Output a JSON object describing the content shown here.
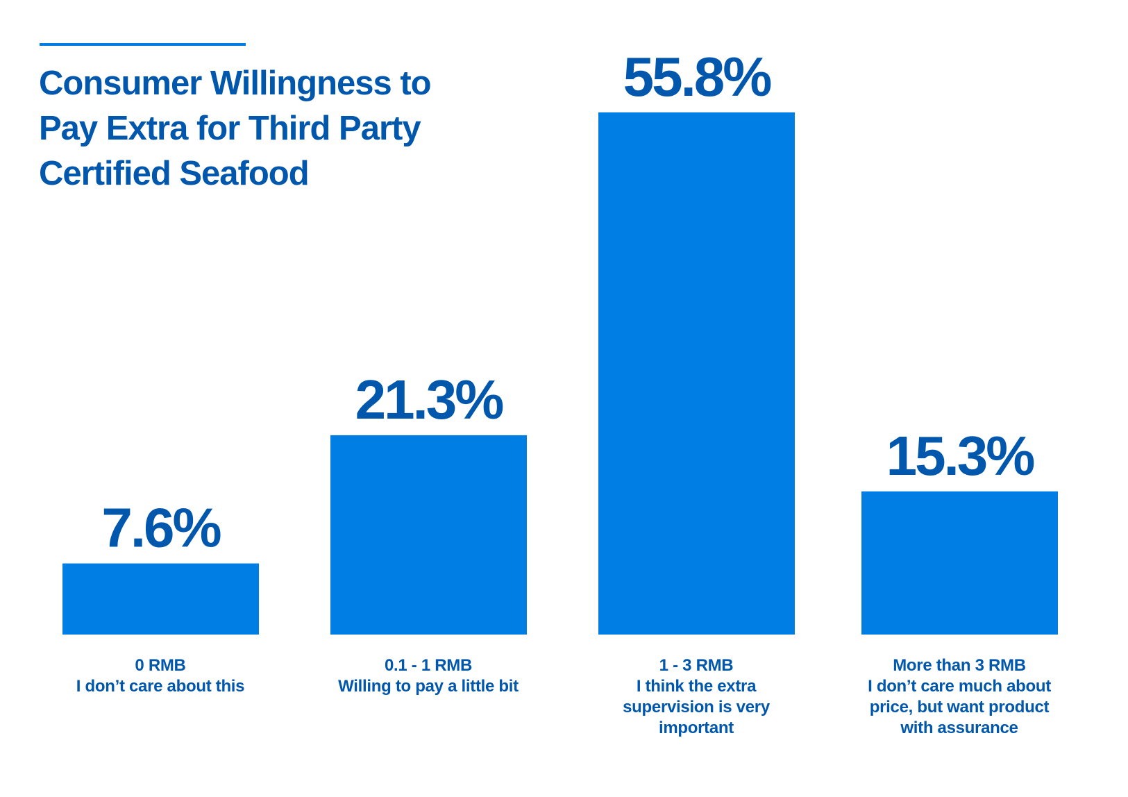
{
  "colors": {
    "bar": "#017EE3",
    "text": "#0157AC",
    "rule": "#017EE3"
  },
  "chart_data": {
    "type": "bar",
    "title": "Consumer Willingness to Pay Extra for Third Party Certified Seafood",
    "title_lines": [
      "Consumer Willingness to",
      "Pay Extra for Third Party",
      "Certified Seafood"
    ],
    "xlabel": "",
    "ylabel": "",
    "ylim": [
      0,
      60
    ],
    "grid": false,
    "legend": "none",
    "unit": "%",
    "categories": [
      "0 RMB",
      "0.1 - 1 RMB",
      "1 - 3 RMB",
      "More than 3 RMB"
    ],
    "category_descriptions": [
      [
        "I don’t care about this"
      ],
      [
        "Willing to pay a little bit"
      ],
      [
        "I think the extra",
        "supervision is very",
        "important"
      ],
      [
        "I don’t care much about",
        "price, but want product",
        "with assurance"
      ]
    ],
    "values": [
      7.6,
      21.3,
      55.8,
      15.3
    ],
    "data_labels": [
      "7.6%",
      "21.3%",
      "55.8%",
      "15.3%"
    ]
  }
}
